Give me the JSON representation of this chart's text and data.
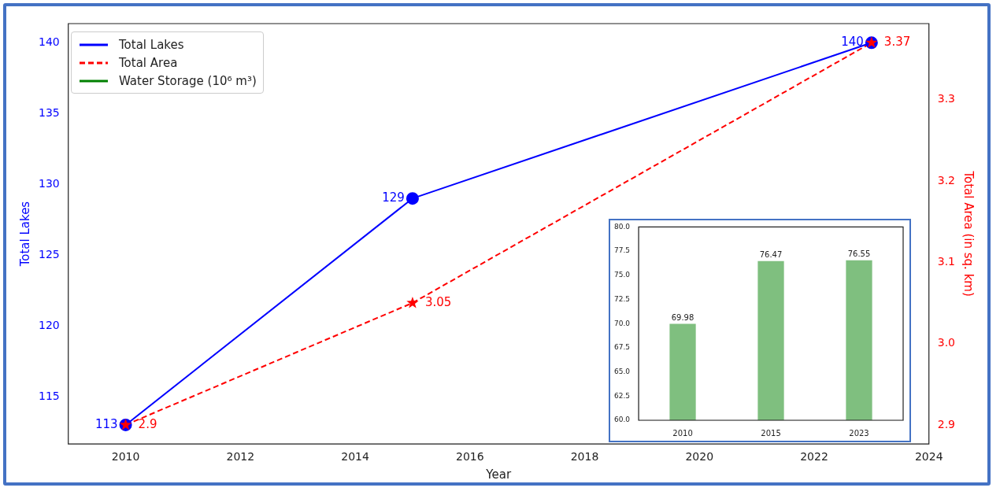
{
  "chart_data": [
    {
      "type": "line",
      "xlabel": "Year",
      "ylabel": "Total Lakes",
      "y2label": "Total Area (in sq. km)",
      "x": [
        2010,
        2015,
        2023
      ],
      "series": [
        {
          "name": "Total Lakes",
          "color": "#0000ff",
          "values": [
            113,
            129,
            140
          ],
          "marker": "circle",
          "line_style": "solid"
        },
        {
          "name": "Total Area",
          "color": "#ff0000",
          "values": [
            2.9,
            3.05,
            3.37
          ],
          "axis": "y2",
          "marker": "star",
          "line_style": "dashed"
        },
        {
          "name": "Water Storage (10⁶ m³)",
          "color": "#008000",
          "values": [
            null,
            null,
            null
          ],
          "line_style": "solid"
        }
      ],
      "xlim": [
        2009,
        2024
      ],
      "xticks": [
        2010,
        2012,
        2014,
        2016,
        2018,
        2020,
        2022,
        2024
      ],
      "ylim": [
        111.65,
        141.35
      ],
      "yticks": [
        115,
        120,
        125,
        130,
        135,
        140
      ],
      "y2lim": [
        2.8765,
        3.3935
      ],
      "y2ticks": [
        2.9,
        {
          "value": 3,
          "label": "3.0"
        },
        3.1,
        3.2,
        3.3
      ],
      "data_labels": true,
      "legend": "top left",
      "grid": false
    },
    {
      "type": "bar",
      "categories": [
        "2010",
        "2015",
        "2023"
      ],
      "values": [
        69.98,
        76.47,
        76.55
      ],
      "color": "#7fbf7f",
      "ylim": [
        60,
        80
      ],
      "yticks": [
        {
          "value": 60,
          "label": "60.0"
        },
        62.5,
        {
          "value": 65,
          "label": "65.0"
        },
        67.5,
        {
          "value": 70,
          "label": "70.0"
        },
        72.5,
        {
          "value": 75,
          "label": "75.0"
        },
        77.5,
        {
          "value": 80,
          "label": "80.0"
        }
      ],
      "data_labels": true,
      "grid": false
    }
  ]
}
